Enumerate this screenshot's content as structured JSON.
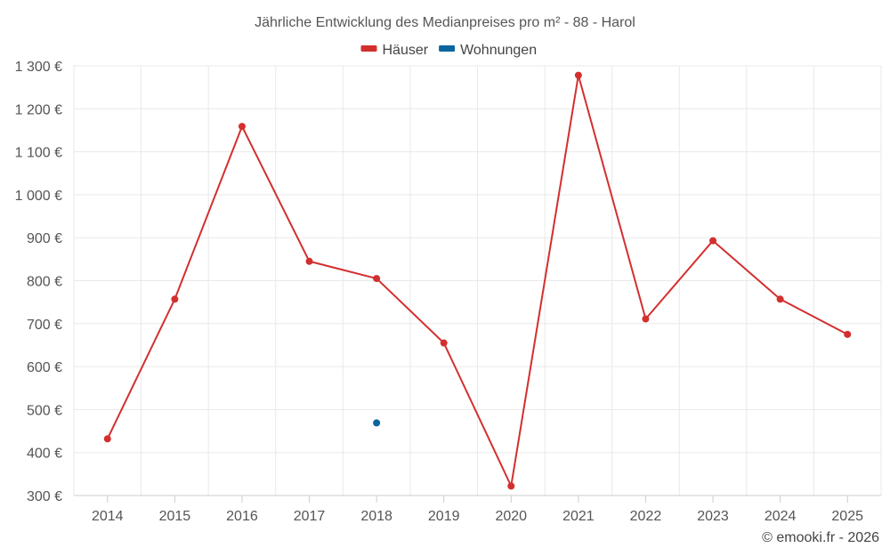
{
  "chart_data": {
    "type": "line",
    "title": "Jährliche Entwicklung des Medianpreises pro m² - 88 - Harol",
    "categories": [
      "2014",
      "2015",
      "2016",
      "2017",
      "2018",
      "2019",
      "2020",
      "2021",
      "2022",
      "2023",
      "2024",
      "2025"
    ],
    "ylim": [
      300,
      1300
    ],
    "yticks": [
      300,
      400,
      500,
      600,
      700,
      800,
      900,
      1000,
      1100,
      1200,
      1300
    ],
    "ytick_labels": [
      "300 €",
      "400 €",
      "500 €",
      "600 €",
      "700 €",
      "800 €",
      "900 €",
      "1 000 €",
      "1 100 €",
      "1 200 €",
      "1 300 €"
    ],
    "series": [
      {
        "name": "Häuser",
        "color": "#d32f2f",
        "values": [
          432,
          757,
          1159,
          845,
          805,
          655,
          322,
          1278,
          711,
          893,
          757,
          675
        ]
      },
      {
        "name": "Wohnungen",
        "color": "#0b66a0",
        "values": [
          null,
          null,
          null,
          null,
          469,
          null,
          null,
          null,
          null,
          null,
          null,
          null
        ]
      }
    ],
    "grid": true,
    "legend_position": "top-center"
  },
  "credit": "© emooki.fr - 2026"
}
